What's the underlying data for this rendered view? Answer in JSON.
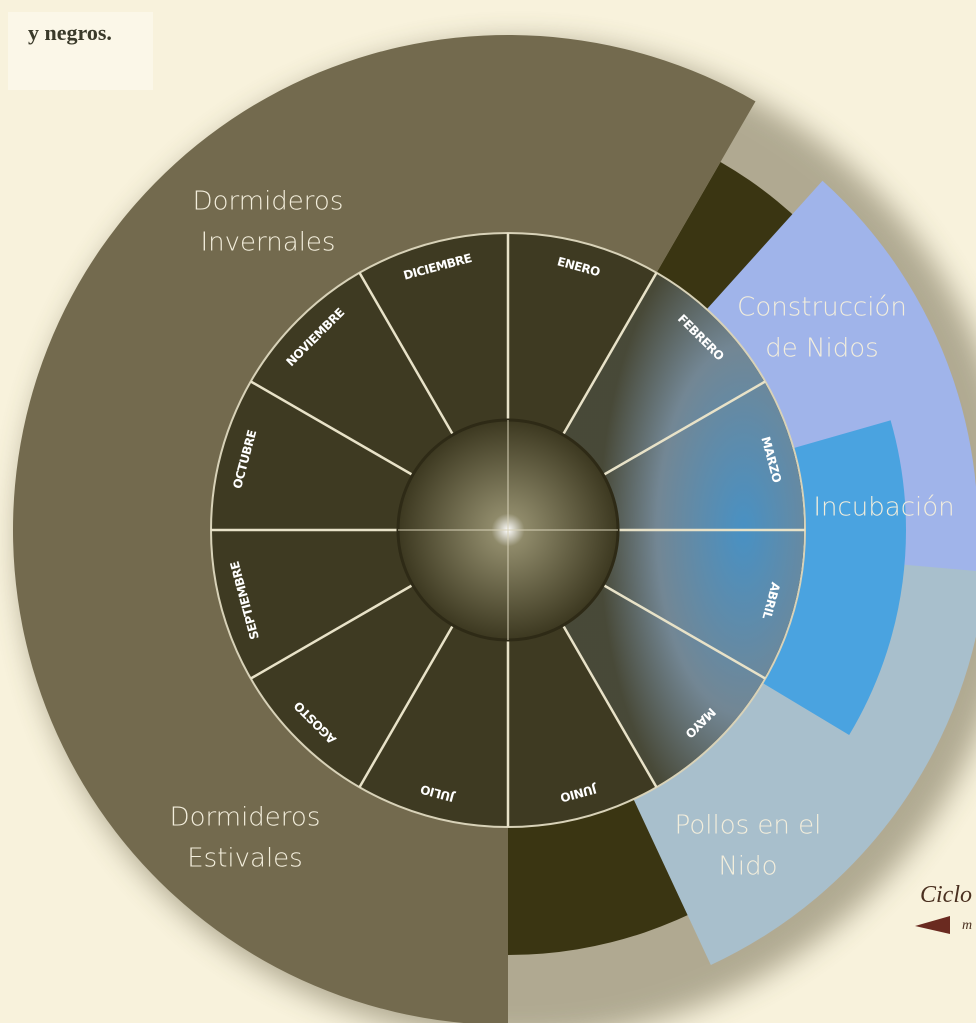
{
  "header": {
    "snippet": "y negros."
  },
  "months": [
    "ENERO",
    "FEBRERO",
    "MARZO",
    "ABRIL",
    "MAYO",
    "JUNIO",
    "JULIO",
    "AGOSTO",
    "SEPTIEMBRE",
    "OCTUBRE",
    "NOVIEMBRE",
    "DICIEMBRE"
  ],
  "phases": [
    {
      "lines": [
        "Dormideros",
        "Invernales"
      ]
    },
    {
      "lines": [
        "Dormideros",
        "Estivales"
      ]
    },
    {
      "lines": [
        "Construcción",
        "de Nidos"
      ]
    },
    {
      "lines": [
        "Incubación"
      ]
    },
    {
      "lines": [
        "Pollos en el",
        "Nido"
      ]
    }
  ],
  "caption": {
    "title": "Ciclo",
    "note": "m"
  }
}
